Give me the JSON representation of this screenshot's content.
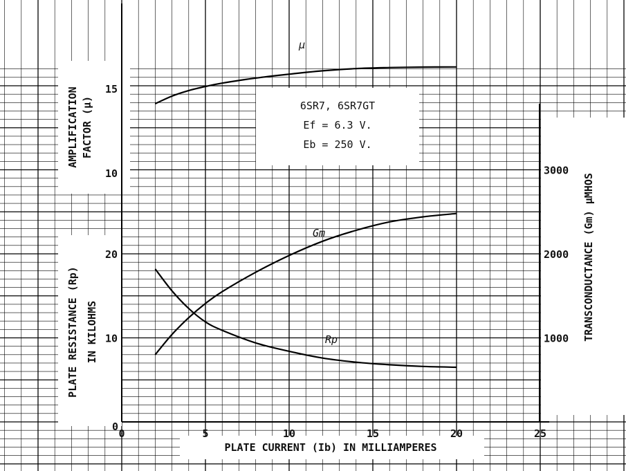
{
  "chart_data": {
    "type": "line",
    "title": "",
    "annotation": {
      "lines": [
        "6SR7, 6SR7GT",
        "Ef = 6.3 V.",
        "Eb = 250 V."
      ]
    },
    "x": {
      "label": "PLATE CURRENT (Ib) IN MILLIAMPERES",
      "range": [
        0,
        25
      ],
      "ticks": [
        "0",
        "5",
        "10",
        "15",
        "20",
        "25"
      ]
    },
    "y_left_top": {
      "label_lines": [
        "AMPLIFICATION",
        "FACTOR (μ)"
      ],
      "range": [
        10,
        17.5
      ],
      "ticks": [
        "10",
        "15"
      ]
    },
    "y_left_bottom": {
      "label_lines": [
        "PLATE RESISTANCE (Rp)",
        "IN KILOHMS"
      ],
      "range": [
        0,
        20
      ],
      "ticks": [
        "0",
        "10",
        "20"
      ]
    },
    "y_right": {
      "label": "TRANSCONDUCTANCE (Gm) μMHOS",
      "range": [
        0,
        3000
      ],
      "ticks": [
        "1000",
        "2000",
        "3000"
      ]
    },
    "series": [
      {
        "name": "μ",
        "axis": "y_left_top",
        "x": [
          2,
          3,
          4,
          5,
          6,
          8,
          10,
          12,
          14,
          16,
          18,
          20
        ],
        "y": [
          14.1,
          14.55,
          14.88,
          15.12,
          15.32,
          15.62,
          15.85,
          16.05,
          16.18,
          16.24,
          16.27,
          16.28
        ]
      },
      {
        "name": "Gm",
        "axis": "y_right",
        "x": [
          2,
          3,
          4,
          5,
          6,
          8,
          10,
          12,
          14,
          16,
          18,
          20
        ],
        "y": [
          800,
          1040,
          1240,
          1410,
          1550,
          1780,
          1980,
          2150,
          2280,
          2380,
          2440,
          2480
        ]
      },
      {
        "name": "Rp",
        "axis": "y_left_bottom",
        "x": [
          2,
          3,
          4,
          5,
          6,
          8,
          10,
          12,
          14,
          16,
          18,
          20
        ],
        "y": [
          18.2,
          15.6,
          13.5,
          11.9,
          10.9,
          9.4,
          8.4,
          7.6,
          7.1,
          6.8,
          6.6,
          6.5
        ]
      }
    ]
  }
}
